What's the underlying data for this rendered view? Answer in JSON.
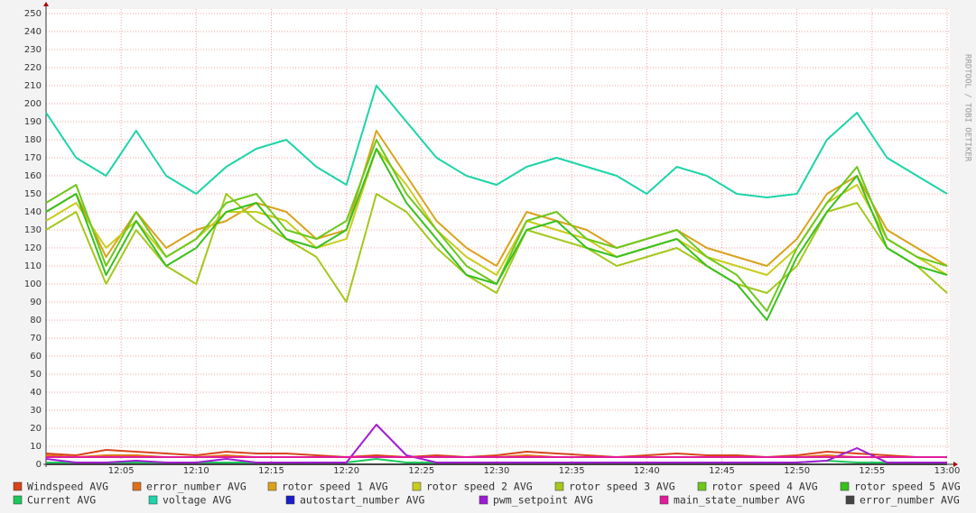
{
  "chart_data": {
    "type": "line",
    "watermark": "RRDTOOL / TOBI OETIKER",
    "x": [
      "12:00",
      "12:02",
      "12:04",
      "12:06",
      "12:08",
      "12:10",
      "12:12",
      "12:14",
      "12:16",
      "12:18",
      "12:20",
      "12:22",
      "12:24",
      "12:26",
      "12:28",
      "12:30",
      "12:32",
      "12:34",
      "12:36",
      "12:38",
      "12:40",
      "12:42",
      "12:44",
      "12:46",
      "12:48",
      "12:50",
      "12:52",
      "12:54",
      "12:56",
      "12:58",
      "13:00"
    ],
    "xlim": [
      "12:00",
      "13:00"
    ],
    "xticks": [
      "12:05",
      "12:10",
      "12:15",
      "12:20",
      "12:25",
      "12:30",
      "12:35",
      "12:40",
      "12:45",
      "12:50",
      "12:55",
      "13:00"
    ],
    "ylim": [
      0,
      250
    ],
    "yticks": [
      0,
      10,
      20,
      30,
      40,
      50,
      60,
      70,
      80,
      90,
      100,
      110,
      120,
      130,
      140,
      150,
      160,
      170,
      180,
      190,
      200,
      210,
      220,
      230,
      240,
      250
    ],
    "grid": true,
    "series": [
      {
        "name": "Windspeed AVG",
        "color": "#d8441c",
        "values": [
          6,
          5,
          8,
          7,
          6,
          5,
          7,
          6,
          6,
          5,
          4,
          5,
          4,
          5,
          4,
          5,
          7,
          6,
          5,
          4,
          5,
          6,
          5,
          5,
          4,
          5,
          7,
          6,
          5,
          4,
          4
        ]
      },
      {
        "name": "error_number AVG",
        "color": "#e0701c",
        "values": [
          5,
          4,
          5,
          5,
          4,
          4,
          5,
          4,
          4,
          4,
          4,
          4,
          4,
          4,
          4,
          4,
          5,
          4,
          4,
          4,
          4,
          4,
          4,
          4,
          4,
          4,
          5,
          4,
          4,
          4,
          4
        ]
      },
      {
        "name": "rotor speed 1 AVG",
        "color": "#d9a21c",
        "values": [
          140,
          150,
          115,
          140,
          120,
          130,
          135,
          145,
          140,
          125,
          130,
          185,
          160,
          135,
          120,
          110,
          140,
          135,
          130,
          120,
          125,
          130,
          120,
          115,
          110,
          125,
          150,
          160,
          130,
          120,
          110
        ]
      },
      {
        "name": "rotor speed 2 AVG",
        "color": "#c8cc1c",
        "values": [
          135,
          145,
          120,
          135,
          115,
          125,
          140,
          140,
          135,
          120,
          125,
          175,
          155,
          130,
          115,
          105,
          135,
          130,
          125,
          115,
          120,
          125,
          115,
          110,
          105,
          120,
          145,
          155,
          125,
          115,
          105
        ]
      },
      {
        "name": "rotor speed 3 AVG",
        "color": "#a4c81c",
        "values": [
          130,
          140,
          100,
          130,
          110,
          100,
          150,
          135,
          125,
          115,
          90,
          150,
          140,
          120,
          105,
          95,
          130,
          125,
          120,
          110,
          115,
          120,
          110,
          100,
          95,
          110,
          140,
          145,
          120,
          110,
          95
        ]
      },
      {
        "name": "rotor speed 4 AVG",
        "color": "#6cc81c",
        "values": [
          145,
          155,
          110,
          140,
          115,
          125,
          145,
          150,
          130,
          125,
          135,
          180,
          150,
          130,
          110,
          100,
          135,
          140,
          125,
          120,
          125,
          130,
          115,
          105,
          85,
          120,
          145,
          165,
          125,
          115,
          110
        ]
      },
      {
        "name": "rotor speed 5 AVG",
        "color": "#38c01c",
        "values": [
          140,
          150,
          105,
          135,
          110,
          120,
          140,
          145,
          125,
          120,
          130,
          175,
          145,
          125,
          105,
          100,
          130,
          135,
          120,
          115,
          120,
          125,
          110,
          100,
          80,
          115,
          140,
          160,
          120,
          110,
          105
        ]
      },
      {
        "name": "Current AVG",
        "color": "#1cc85c",
        "values": [
          1,
          1,
          1,
          1,
          1,
          1,
          1,
          1,
          1,
          1,
          1,
          3,
          1,
          1,
          1,
          1,
          1,
          1,
          1,
          1,
          1,
          1,
          1,
          1,
          1,
          1,
          2,
          1,
          1,
          1,
          1
        ]
      },
      {
        "name": "voltage AVG",
        "color": "#1cd4a8",
        "values": [
          195,
          170,
          160,
          185,
          160,
          150,
          165,
          175,
          180,
          165,
          155,
          210,
          190,
          170,
          160,
          155,
          165,
          170,
          165,
          160,
          150,
          165,
          160,
          150,
          148,
          150,
          180,
          195,
          170,
          160,
          150
        ]
      },
      {
        "name": "autostart_number AVG",
        "color": "#1c1cc8",
        "values": [
          0,
          0,
          0,
          0,
          0,
          0,
          0,
          0,
          0,
          0,
          0,
          0,
          0,
          0,
          0,
          0,
          0,
          0,
          0,
          0,
          0,
          0,
          0,
          0,
          0,
          0,
          0,
          0,
          0,
          0,
          0
        ]
      },
      {
        "name": "pwm_setpoint AVG",
        "color": "#a01cd4",
        "values": [
          3,
          1,
          1,
          2,
          1,
          1,
          3,
          1,
          1,
          1,
          1,
          22,
          5,
          1,
          1,
          1,
          1,
          1,
          1,
          1,
          1,
          1,
          1,
          1,
          1,
          1,
          2,
          9,
          1,
          1,
          1
        ]
      },
      {
        "name": "main_state_number AVG",
        "color": "#e01c9c",
        "values": [
          4,
          4,
          4,
          4,
          4,
          4,
          4,
          4,
          4,
          4,
          4,
          4,
          4,
          4,
          4,
          4,
          4,
          4,
          4,
          4,
          4,
          4,
          4,
          4,
          4,
          4,
          4,
          4,
          4,
          4,
          4
        ]
      },
      {
        "name": "error_number AVG",
        "color": "#444444",
        "values": [
          0,
          0,
          0,
          0,
          0,
          0,
          0,
          0,
          0,
          0,
          0,
          0,
          0,
          0,
          0,
          0,
          0,
          0,
          0,
          0,
          0,
          0,
          0,
          0,
          0,
          0,
          0,
          0,
          0,
          0,
          0
        ]
      }
    ]
  }
}
